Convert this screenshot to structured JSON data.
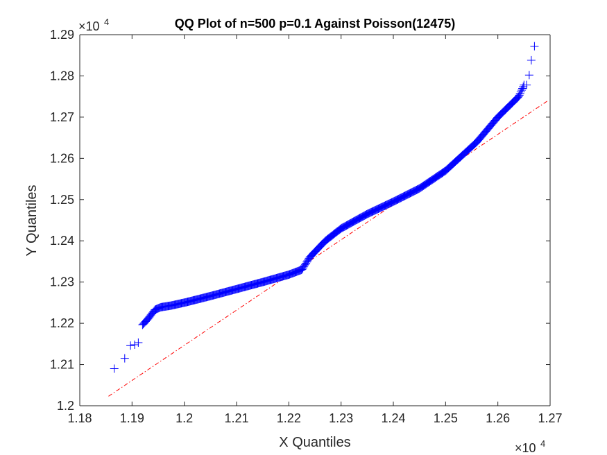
{
  "chart_data": {
    "type": "scatter",
    "title": "QQ Plot of n=500 p=0.1 Against Poisson(12475)",
    "xlabel": "X Quantiles",
    "ylabel": "Y Quantiles",
    "x_exponent": {
      "base": "×10",
      "power": "4"
    },
    "y_exponent": {
      "base": "×10",
      "power": "4"
    },
    "xlim": [
      1.18,
      1.27
    ],
    "ylim": [
      1.2,
      1.29
    ],
    "x_ticks": [
      "1.18",
      "1.19",
      "1.2",
      "1.21",
      "1.22",
      "1.23",
      "1.24",
      "1.25",
      "1.26",
      "1.27"
    ],
    "y_ticks": [
      "1.2",
      "1.21",
      "1.22",
      "1.23",
      "1.24",
      "1.25",
      "1.26",
      "1.27",
      "1.28",
      "1.29"
    ],
    "grid": false,
    "marker": "+",
    "marker_color": "#0000ff",
    "reference_line": {
      "style": "dash-dot",
      "color": "#ff0000",
      "x": [
        1.1855,
        1.2697
      ],
      "y": [
        1.2023,
        1.2741
      ]
    },
    "quantile_knots": {
      "x": [
        1.1866,
        1.1886,
        1.1898,
        1.1912,
        1.193,
        1.1944,
        1.1955,
        1.1975,
        1.2,
        1.205,
        1.21,
        1.215,
        1.22,
        1.2225,
        1.224,
        1.227,
        1.23,
        1.235,
        1.24,
        1.245,
        1.25,
        1.253,
        1.256,
        1.26,
        1.262,
        1.264,
        1.265,
        1.266,
        1.267
      ],
      "y": [
        1.209,
        1.2115,
        1.2146,
        1.2185,
        1.221,
        1.2233,
        1.2239,
        1.2243,
        1.225,
        1.2266,
        1.2283,
        1.23,
        1.2318,
        1.233,
        1.236,
        1.24,
        1.243,
        1.2465,
        1.2495,
        1.2527,
        1.257,
        1.2605,
        1.264,
        1.27,
        1.2725,
        1.275,
        1.2778,
        1.2802,
        1.2872
      ]
    },
    "tail_points": [
      [
        1.1866,
        1.209
      ],
      [
        1.1886,
        1.2115
      ],
      [
        1.1897,
        1.2146
      ],
      [
        1.1905,
        1.2148
      ],
      [
        1.1912,
        1.2153
      ],
      [
        1.2655,
        1.2778
      ],
      [
        1.266,
        1.2802
      ],
      [
        1.2664,
        1.2838
      ],
      [
        1.267,
        1.2872
      ]
    ],
    "point_count": 500
  }
}
